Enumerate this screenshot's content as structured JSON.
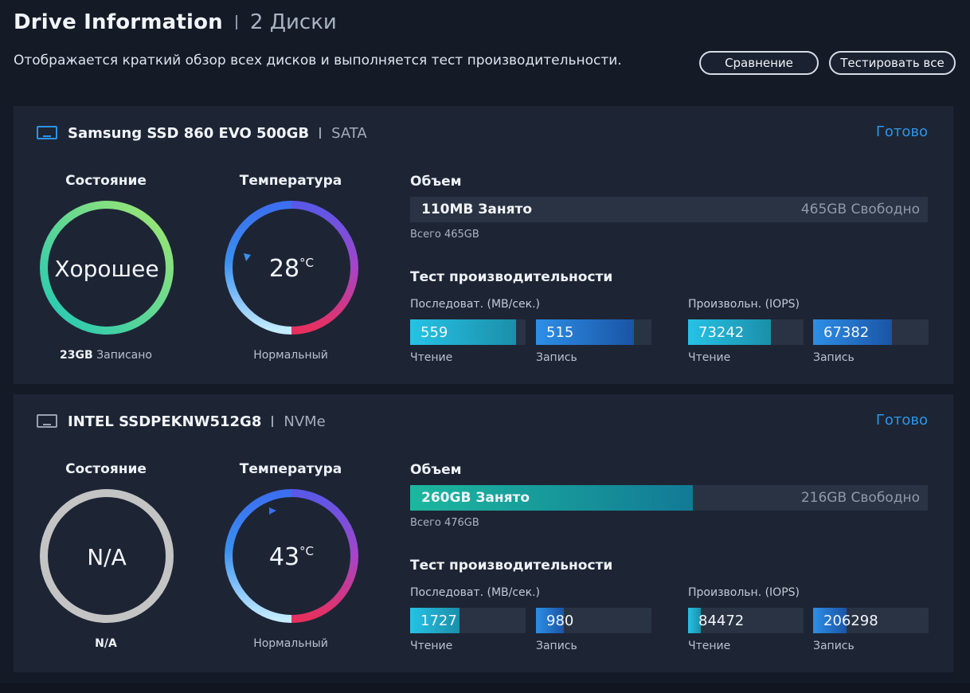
{
  "header": {
    "title": "Drive Information",
    "count": "2 Диски",
    "subtitle": "Отображается краткий обзор всех дисков и выполняется тест производительности.",
    "compare_label": "Сравнение",
    "test_all_label": "Тестировать все"
  },
  "colors": {
    "accent": "#2e95e6",
    "health_good_gradient": [
      "#a4e86f",
      "#1fc7b8"
    ],
    "temp_gradient": [
      "#b9e7ff",
      "#3a8ff0",
      "#8b45d6",
      "#e7305d"
    ],
    "na": "#c4c4c4"
  },
  "drives": [
    {
      "name": "Samsung SSD 860 EVO 500GB",
      "interface": "SATA",
      "status": "Готово",
      "icon": "drive-icon",
      "health_label": "Состояние",
      "health_value": "Хорошее",
      "written_value": "23GB",
      "written_label": "Записано",
      "temp_label": "Температура",
      "temp_value": "28",
      "temp_unit": "°C",
      "temp_status": "Нормальный",
      "capacity_label": "Объем",
      "used_text": "110MB Занято",
      "free_text": "465GB Свободно",
      "used_fraction": 0.0002,
      "total_text": "Всего 465GB",
      "perf_title": "Тест производительности",
      "seq_label": "Последоват. (MB/сек.)",
      "rand_label": "Произвольн. (IOPS)",
      "seq_read": "559",
      "seq_write": "515",
      "rand_read": "73242",
      "rand_write": "67382",
      "seq_read_fraction": 0.92,
      "seq_write_fraction": 0.85,
      "rand_read_fraction": 0.72,
      "rand_write_fraction": 0.68,
      "read_label": "Чтение",
      "write_label": "Запись"
    },
    {
      "name": "INTEL SSDPEKNW512G8",
      "interface": "NVMe",
      "status": "Готово",
      "icon": "drive-icon",
      "health_label": "Состояние",
      "health_value": "N/A",
      "written_value": "N/A",
      "written_label": "",
      "temp_label": "Температура",
      "temp_value": "43",
      "temp_unit": "°C",
      "temp_status": "Нормальный",
      "capacity_label": "Объем",
      "used_text": "260GB Занято",
      "free_text": "216GB Свободно",
      "used_fraction": 0.546,
      "total_text": "Всего 476GB",
      "perf_title": "Тест производительности",
      "seq_label": "Последоват. (MB/сек.)",
      "rand_label": "Произвольн. (IOPS)",
      "seq_read": "1727",
      "seq_write": "980",
      "rand_read": "84472",
      "rand_write": "206298",
      "seq_read_fraction": 0.43,
      "seq_write_fraction": 0.24,
      "rand_read_fraction": 0.11,
      "rand_write_fraction": 0.29,
      "read_label": "Чтение",
      "write_label": "Запись"
    }
  ]
}
